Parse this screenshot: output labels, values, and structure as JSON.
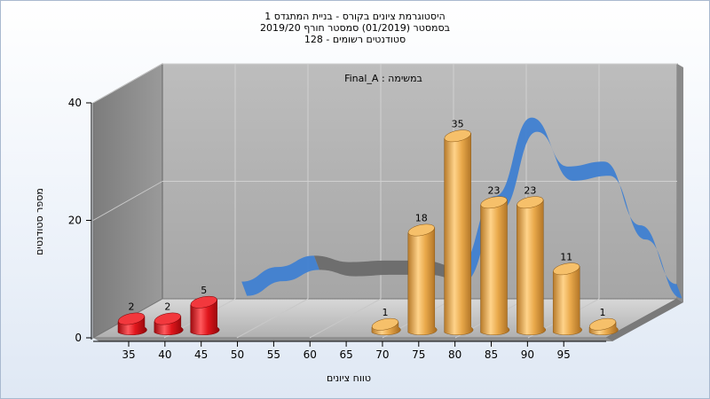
{
  "chart": {
    "title_lines": [
      "היסטוגרמת ציונים בקורס - בניית המתגדס 1",
      "בסמסטר  (01/2019)  סמסטר חורף 2019/20",
      "סטודנטים רשומים - 128"
    ]
  },
  "chart_data": {
    "type": "bar",
    "series_label": "Final_A : במשימה",
    "categories": [
      "35",
      "40",
      "45",
      "50",
      "55",
      "60",
      "65",
      "70",
      "75",
      "80",
      "85",
      "90",
      "95"
    ],
    "bars": [
      {
        "x": 35,
        "value": 2,
        "color": "red"
      },
      {
        "x": 40,
        "value": 2,
        "color": "red"
      },
      {
        "x": 45,
        "value": 5,
        "color": "red"
      },
      {
        "x": 70,
        "value": 1,
        "color": "orange"
      },
      {
        "x": 75,
        "value": 18,
        "color": "orange"
      },
      {
        "x": 80,
        "value": 35,
        "color": "orange"
      },
      {
        "x": 85,
        "value": 23,
        "color": "orange"
      },
      {
        "x": 90,
        "value": 23,
        "color": "orange"
      },
      {
        "x": 95,
        "value": 11,
        "color": "orange"
      },
      {
        "x": 100,
        "value": 1,
        "color": "orange"
      }
    ],
    "curve": {
      "x": [
        42,
        47,
        52,
        57,
        62,
        67,
        72,
        77,
        82,
        87,
        92,
        97,
        102
      ],
      "y": [
        3.5,
        6.5,
        8.8,
        7.5,
        7.8,
        7.8,
        6.5,
        21,
        37,
        27,
        28,
        15,
        3
      ]
    },
    "ylim": [
      0,
      40
    ],
    "yticks": [
      0,
      20,
      40
    ],
    "xlabel": "טווח ציונים",
    "ylabel": "מספר סטודנטים",
    "grid": true,
    "colors": {
      "red_bar": "#e0161c",
      "orange_bar": "#e9a94b",
      "curve_blue": "#3f7fd1",
      "curve_gray": "#6a6a6a",
      "wall": "#a0a0a0",
      "floor": "#b8b8b8"
    }
  }
}
